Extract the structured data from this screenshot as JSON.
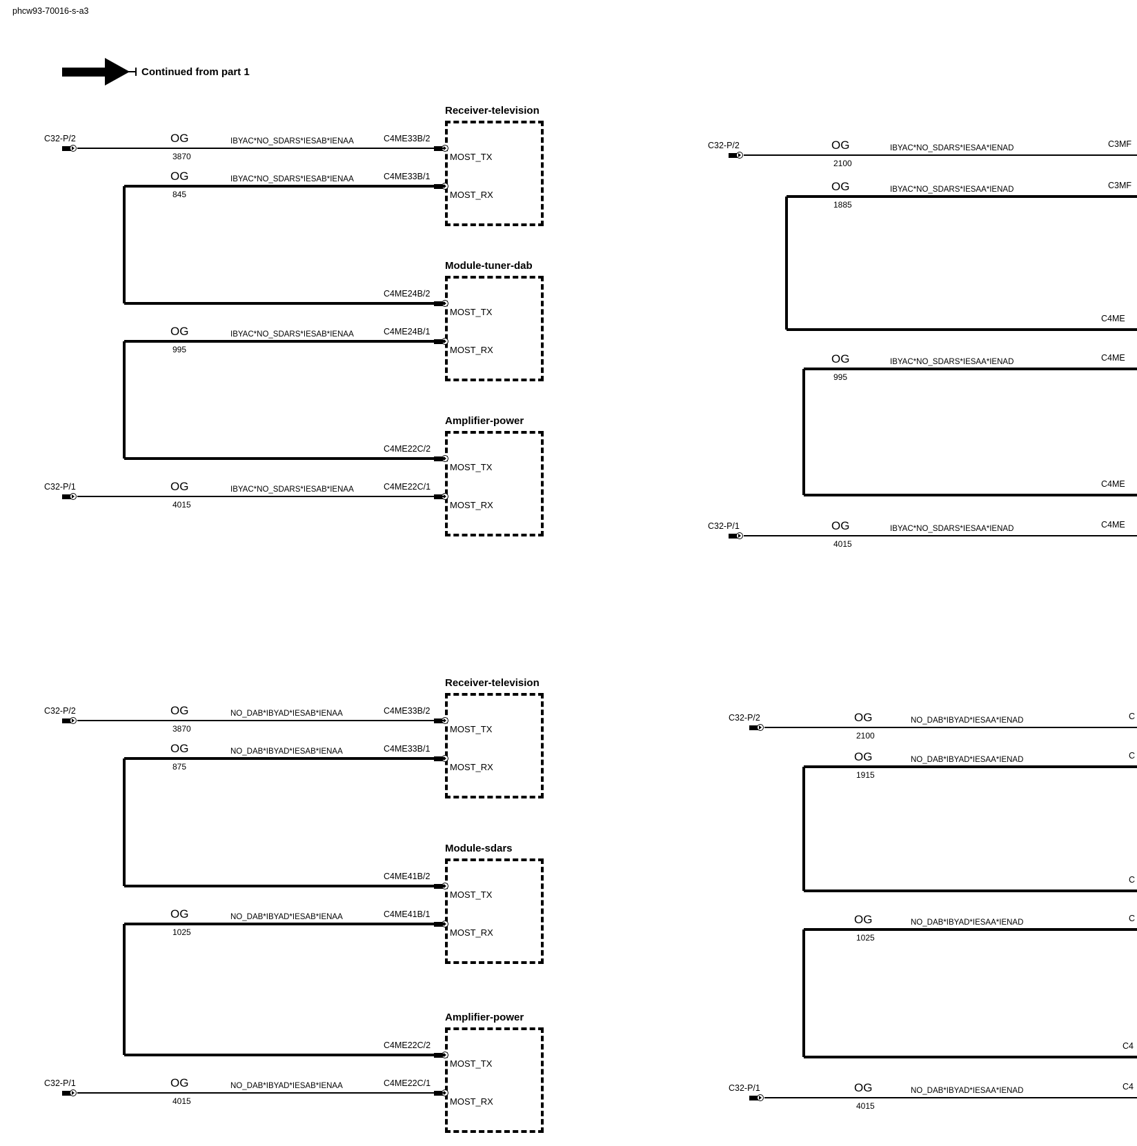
{
  "page": {
    "doc_id": "phcw93-70016-s-a3",
    "continuation": "Continued from part 1"
  },
  "labels": {
    "most_tx": "MOST_TX",
    "most_rx": "MOST_RX"
  },
  "groups": {
    "left_top": {
      "modules": [
        "Receiver-television",
        "Module-tuner-dab",
        "Amplifier-power"
      ],
      "rows": [
        {
          "from": "C32-P/2",
          "gauge": "OG",
          "size": "3870",
          "circuit": "IBYAC*NO_SDARS*IESAB*IENAA",
          "to": "C4ME33B/2"
        },
        {
          "gauge": "OG",
          "size": "845",
          "circuit": "IBYAC*NO_SDARS*IESAB*IENAA",
          "to": "C4ME33B/1"
        },
        {
          "to": "C4ME24B/2"
        },
        {
          "gauge": "OG",
          "size": "995",
          "circuit": "IBYAC*NO_SDARS*IESAB*IENAA",
          "to": "C4ME24B/1"
        },
        {
          "to": "C4ME22C/2"
        },
        {
          "from": "C32-P/1",
          "gauge": "OG",
          "size": "4015",
          "circuit": "IBYAC*NO_SDARS*IESAB*IENAA",
          "to": "C4ME22C/1"
        }
      ]
    },
    "left_bottom": {
      "modules": [
        "Receiver-television",
        "Module-sdars",
        "Amplifier-power"
      ],
      "rows": [
        {
          "from": "C32-P/2",
          "gauge": "OG",
          "size": "3870",
          "circuit": "NO_DAB*IBYAD*IESAB*IENAA",
          "to": "C4ME33B/2"
        },
        {
          "gauge": "OG",
          "size": "875",
          "circuit": "NO_DAB*IBYAD*IESAB*IENAA",
          "to": "C4ME33B/1"
        },
        {
          "to": "C4ME41B/2"
        },
        {
          "gauge": "OG",
          "size": "1025",
          "circuit": "NO_DAB*IBYAD*IESAB*IENAA",
          "to": "C4ME41B/1"
        },
        {
          "to": "C4ME22C/2"
        },
        {
          "from": "C32-P/1",
          "gauge": "OG",
          "size": "4015",
          "circuit": "NO_DAB*IBYAD*IESAB*IENAA",
          "to": "C4ME22C/1"
        }
      ]
    },
    "right_top": {
      "rows": [
        {
          "from": "C32-P/2",
          "gauge": "OG",
          "size": "2100",
          "circuit": "IBYAC*NO_SDARS*IESAA*IENAD",
          "to": "C3MF"
        },
        {
          "gauge": "OG",
          "size": "1885",
          "circuit": "IBYAC*NO_SDARS*IESAA*IENAD",
          "to": "C3MF"
        },
        {
          "to": "C4ME"
        },
        {
          "gauge": "OG",
          "size": "995",
          "circuit": "IBYAC*NO_SDARS*IESAA*IENAD",
          "to": "C4ME"
        },
        {
          "to": "C4ME"
        },
        {
          "from": "C32-P/1",
          "gauge": "OG",
          "size": "4015",
          "circuit": "IBYAC*NO_SDARS*IESAA*IENAD",
          "to": "C4ME"
        }
      ]
    },
    "right_bottom": {
      "rows": [
        {
          "from": "C32-P/2",
          "gauge": "OG",
          "size": "2100",
          "circuit": "NO_DAB*IBYAD*IESAA*IENAD",
          "to": "C"
        },
        {
          "gauge": "OG",
          "size": "1915",
          "circuit": "NO_DAB*IBYAD*IESAA*IENAD",
          "to": "C"
        },
        {
          "to": "C"
        },
        {
          "gauge": "OG",
          "size": "1025",
          "circuit": "NO_DAB*IBYAD*IESAA*IENAD",
          "to": "C"
        },
        {
          "to": "C4"
        },
        {
          "from": "C32-P/1",
          "gauge": "OG",
          "size": "4015",
          "circuit": "NO_DAB*IBYAD*IESAA*IENAD",
          "to": "C4"
        }
      ]
    }
  }
}
